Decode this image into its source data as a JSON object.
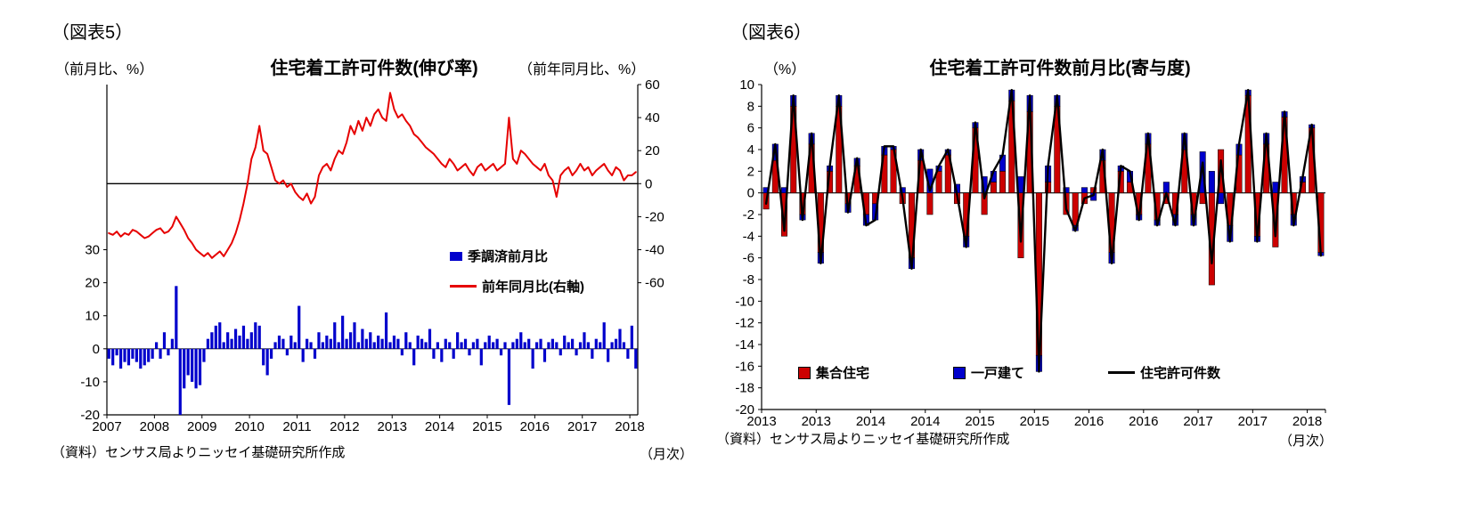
{
  "page": {
    "background": "#ffffff"
  },
  "chart_data": [
    {
      "type": "bar+line",
      "figure_label": "（図表5）",
      "title": "住宅着工許可件数(伸び率)",
      "left_axis_label": "（前月比、%）",
      "right_axis_label": "（前年同月比、%）",
      "source": "（資料）センサス局よりニッセイ基礎研究所作成",
      "freq_label": "（月次）",
      "x_start": "2007-01",
      "x_frequency": "monthly",
      "x_labels": [
        "2007",
        "2008",
        "2009",
        "2010",
        "2011",
        "2012",
        "2013",
        "2014",
        "2015",
        "2016",
        "2017",
        "2018"
      ],
      "axes": {
        "left": {
          "range": [
            -20,
            80
          ],
          "ticks": [
            30,
            20,
            10,
            0,
            -10,
            -20
          ]
        },
        "right": {
          "range": [
            -140,
            60
          ],
          "ticks": [
            60,
            40,
            20,
            0,
            -20,
            -40,
            -60
          ]
        }
      },
      "grid": "off",
      "legend_position": "inside-right",
      "series": [
        {
          "name": "季調済前月比",
          "type": "bar",
          "axis": "left",
          "color": "#0000CC",
          "values": [
            -3,
            -5,
            -2,
            -6,
            -4,
            -5,
            -3,
            -4,
            -6,
            -5,
            -4,
            -3,
            2,
            -3,
            5,
            -2,
            3,
            19,
            -20,
            -12,
            -8,
            -10,
            -12,
            -11,
            -4,
            3,
            5,
            7,
            8,
            2,
            5,
            3,
            6,
            4,
            7,
            3,
            5,
            8,
            7,
            -5,
            -8,
            -3,
            2,
            4,
            3,
            -2,
            4,
            2,
            13,
            -4,
            3,
            2,
            -3,
            5,
            2,
            4,
            3,
            8,
            2,
            10,
            3,
            5,
            8,
            2,
            6,
            3,
            5,
            2,
            4,
            3,
            11,
            2,
            4,
            3,
            -2,
            5,
            2,
            -5,
            4,
            3,
            2,
            6,
            -3,
            2,
            -4,
            3,
            2,
            -3,
            5,
            2,
            3,
            -2,
            2,
            3,
            -5,
            2,
            4,
            2,
            3,
            -2,
            2,
            -17,
            2,
            3,
            5,
            2,
            3,
            -6,
            2,
            3,
            -4,
            2,
            3,
            2,
            -2,
            4,
            2,
            3,
            -2,
            2,
            5,
            2,
            -3,
            3,
            2,
            8,
            -4,
            2,
            3,
            6,
            2,
            -3,
            7,
            -6
          ]
        },
        {
          "name": "前年同月比(右軸)",
          "type": "line",
          "axis": "right",
          "color": "#E60000",
          "values": [
            -30,
            -31,
            -29,
            -32,
            -30,
            -31,
            -28,
            -29,
            -31,
            -33,
            -32,
            -30,
            -28,
            -27,
            -30,
            -29,
            -26,
            -20,
            -24,
            -28,
            -33,
            -36,
            -40,
            -42,
            -44,
            -42,
            -45,
            -43,
            -41,
            -44,
            -40,
            -36,
            -30,
            -22,
            -12,
            0,
            15,
            22,
            35,
            20,
            18,
            10,
            2,
            0,
            2,
            -2,
            0,
            -5,
            -8,
            -10,
            -6,
            -12,
            -8,
            5,
            10,
            12,
            8,
            15,
            20,
            18,
            25,
            35,
            30,
            38,
            32,
            40,
            35,
            42,
            45,
            40,
            38,
            55,
            45,
            40,
            42,
            38,
            35,
            30,
            28,
            25,
            22,
            20,
            18,
            15,
            12,
            10,
            15,
            12,
            8,
            10,
            12,
            8,
            5,
            10,
            12,
            8,
            10,
            12,
            8,
            10,
            12,
            40,
            15,
            12,
            20,
            18,
            15,
            12,
            10,
            8,
            12,
            5,
            2,
            -8,
            5,
            8,
            10,
            5,
            8,
            12,
            8,
            10,
            5,
            8,
            10,
            12,
            8,
            5,
            10,
            8,
            2,
            5,
            5,
            7
          ]
        }
      ]
    },
    {
      "type": "stacked-bar+line",
      "figure_label": "（図表6）",
      "title": "住宅着工許可件数前月比(寄与度)",
      "y_axis_label": "（%）",
      "source": "（資料）センサス局よりニッセイ基礎研究所作成",
      "freq_label": "（月次）",
      "x_start": "2013-01",
      "x_frequency": "monthly",
      "x_labels": [
        "2013",
        "2013",
        "2014",
        "2014",
        "2015",
        "2015",
        "2016",
        "2016",
        "2017",
        "2017",
        "2018"
      ],
      "axes": {
        "left": {
          "range": [
            -20,
            10
          ],
          "ticks": [
            10,
            8,
            6,
            4,
            2,
            0,
            -2,
            -4,
            -6,
            -8,
            -10,
            -12,
            -14,
            -16,
            -18,
            -20
          ]
        }
      },
      "grid": "off",
      "legend_position": "inside-bottom",
      "series": [
        {
          "name": "集合住宅",
          "type": "bar",
          "color": "#CC0000",
          "values": [
            -1.5,
            3,
            -4,
            8,
            -2,
            4.5,
            -5.5,
            2,
            8,
            -1,
            2.5,
            -2,
            -1,
            3.5,
            4,
            -1,
            -6,
            3,
            -2,
            2,
            3.5,
            -1,
            -4,
            6,
            -2,
            1,
            2,
            8.5,
            -6,
            7.5,
            -15,
            1,
            8,
            -2,
            -3,
            -1,
            0.5,
            3,
            -5.5,
            2,
            1,
            -2,
            4.5,
            -2.5,
            -1,
            -2,
            4,
            -2,
            -1,
            -8.5,
            4,
            -3,
            3.5,
            9,
            -4,
            4.5,
            -5,
            7,
            -2,
            1,
            6,
            -5.5
          ]
        },
        {
          "name": "一戸建て",
          "type": "bar",
          "color": "#0000CC",
          "values": [
            0.5,
            1.5,
            0.5,
            1,
            -0.5,
            1,
            -1,
            0.5,
            1,
            -0.8,
            0.7,
            -1,
            -1.5,
            0.8,
            0.3,
            0.5,
            -1,
            1,
            2.2,
            0.5,
            0.5,
            0.8,
            -1,
            0.5,
            1.5,
            1,
            1.5,
            1,
            1.5,
            1.5,
            -1.5,
            1.5,
            1,
            0.5,
            -0.5,
            0.5,
            -0.7,
            1,
            -1,
            0.5,
            1,
            -0.5,
            1,
            -0.5,
            1,
            -1,
            1.5,
            -1,
            3.8,
            2,
            -1,
            -1.5,
            1,
            0.5,
            -0.5,
            1,
            1,
            0.5,
            -1,
            0.5,
            0.3,
            -0.3
          ]
        },
        {
          "name": "住宅許可件数",
          "type": "line",
          "color": "#000000",
          "values": [
            -1,
            4.5,
            -3.5,
            9,
            -2.5,
            5.5,
            -6.5,
            2.5,
            9,
            -1.8,
            3.2,
            -3,
            -2.5,
            4.3,
            4.3,
            -0.5,
            -7,
            4,
            0.2,
            2.5,
            4,
            -0.2,
            -5,
            6.5,
            -0.5,
            2,
            3.5,
            9.5,
            -4.5,
            9,
            -16.5,
            2.5,
            9,
            -1.5,
            -3.5,
            -0.5,
            -0.2,
            4,
            -6.5,
            2.5,
            2,
            -2.5,
            5.5,
            -3,
            0,
            -3,
            5.5,
            -3,
            2.8,
            -6.5,
            3,
            -4.5,
            4.5,
            9.5,
            -4.5,
            5.5,
            -4,
            7.5,
            -3,
            1.5,
            6.3,
            -5.8
          ]
        }
      ]
    }
  ]
}
